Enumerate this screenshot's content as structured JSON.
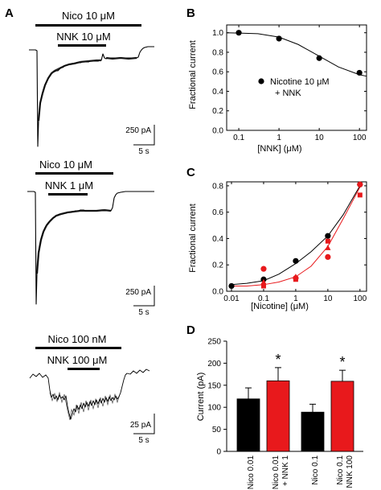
{
  "panels": {
    "A": {
      "label": "A",
      "traces": [
        {
          "drug1": "Nico 10 μM",
          "drug2": "NNK 10 μM",
          "scale_current": "250 pA",
          "scale_time": "5 s"
        },
        {
          "drug1": "Nico 10 μM",
          "drug2": "NNK 1 μM",
          "scale_current": "250 pA",
          "scale_time": "5 s"
        },
        {
          "drug1": "Nico 100 nM",
          "drug2": "NNK 100 μM",
          "scale_current": "25 pA",
          "scale_time": "5 s"
        }
      ]
    },
    "B": {
      "label": "B"
    },
    "C": {
      "label": "C"
    },
    "D": {
      "label": "D"
    }
  },
  "chart_data": [
    {
      "panel": "B",
      "type": "scatter",
      "xlabel": "[NNK] (μM)",
      "ylabel": "Fractional current",
      "xscale": "log",
      "xlim": [
        0.05,
        150
      ],
      "ylim": [
        0.0,
        1.08
      ],
      "x_ticks": [
        "0.1",
        "1",
        "10",
        "100"
      ],
      "x_tick_values": [
        0.1,
        1,
        10,
        100
      ],
      "y_ticks": [
        "0.0",
        "0.2",
        "0.4",
        "0.6",
        "0.8",
        "1.0"
      ],
      "y_tick_values": [
        0.0,
        0.2,
        0.4,
        0.6,
        0.8,
        1.0
      ],
      "legend": [
        "Nicotine 10 μM",
        "+ NNK"
      ],
      "legend_position": "center-right",
      "series": [
        {
          "color": "#000000",
          "marker": "circle",
          "x": [
            0.1,
            1,
            10,
            100
          ],
          "y": [
            1.0,
            0.94,
            0.74,
            0.59
          ]
        }
      ],
      "fit": {
        "color": "#000000",
        "x": [
          0.05,
          0.1,
          0.3,
          1,
          3,
          10,
          30,
          100,
          150
        ],
        "y": [
          1.0,
          0.997,
          0.99,
          0.955,
          0.88,
          0.76,
          0.65,
          0.57,
          0.555
        ]
      }
    },
    {
      "panel": "C",
      "type": "scatter",
      "xlabel": "[Nicotine] (μM)",
      "ylabel": "Fractional current",
      "xscale": "log",
      "xlim": [
        0.01,
        160
      ],
      "ylim": [
        0.0,
        0.83
      ],
      "x_ticks": [
        "0.01",
        "0.1",
        "1",
        "10",
        "100"
      ],
      "x_tick_values": [
        0.01,
        0.1,
        1,
        10,
        100
      ],
      "y_ticks": [
        "0.0",
        "0.2",
        "0.4",
        "0.6",
        "0.8"
      ],
      "y_tick_values": [
        0.0,
        0.2,
        0.4,
        0.6,
        0.8
      ],
      "series": [
        {
          "color": "#000000",
          "marker": "circle",
          "x": [
            0.01,
            0.1,
            1,
            10,
            100
          ],
          "y": [
            0.04,
            0.09,
            0.23,
            0.42,
            0.81
          ]
        },
        {
          "color": "#e8191c",
          "marker": "circle",
          "x": [
            0.1,
            1,
            10,
            100
          ],
          "y": [
            0.17,
            0.1,
            0.26,
            0.81
          ]
        },
        {
          "color": "#e8191c",
          "marker": "triangle",
          "x": [
            0.1,
            1,
            10
          ],
          "y": [
            0.07,
            0.11,
            0.33
          ]
        },
        {
          "color": "#e8191c",
          "marker": "square",
          "x": [
            0.1,
            1,
            10,
            100
          ],
          "y": [
            0.04,
            0.09,
            0.38,
            0.73
          ]
        }
      ],
      "fits": [
        {
          "color": "#000000",
          "x": [
            0.01,
            0.03,
            0.1,
            0.3,
            1,
            3,
            10,
            30,
            100
          ],
          "y": [
            0.05,
            0.06,
            0.08,
            0.13,
            0.21,
            0.3,
            0.42,
            0.58,
            0.8
          ]
        },
        {
          "color": "#e8191c",
          "x": [
            0.01,
            0.03,
            0.1,
            0.3,
            1,
            3,
            10,
            30,
            100
          ],
          "y": [
            0.04,
            0.04,
            0.05,
            0.07,
            0.11,
            0.19,
            0.34,
            0.55,
            0.79
          ]
        }
      ]
    },
    {
      "panel": "D",
      "type": "bar",
      "ylabel": "Current (pA)",
      "ylim": [
        0,
        250
      ],
      "y_ticks": [
        "0",
        "50",
        "100",
        "150",
        "200",
        "250"
      ],
      "y_tick_values": [
        0,
        50,
        100,
        150,
        200,
        250
      ],
      "categories": [
        "Nico 0.01",
        "Nico 0.01\n+ NNK 1",
        "Nico 0.1",
        "Nico 0.1\n+ NNK 100"
      ],
      "values": [
        119,
        160,
        89,
        159
      ],
      "errors": [
        25,
        30,
        18,
        25
      ],
      "colors": [
        "#000000",
        "#e8191c",
        "#000000",
        "#e8191c"
      ],
      "significance": [
        "",
        "*",
        "",
        "*"
      ]
    }
  ]
}
